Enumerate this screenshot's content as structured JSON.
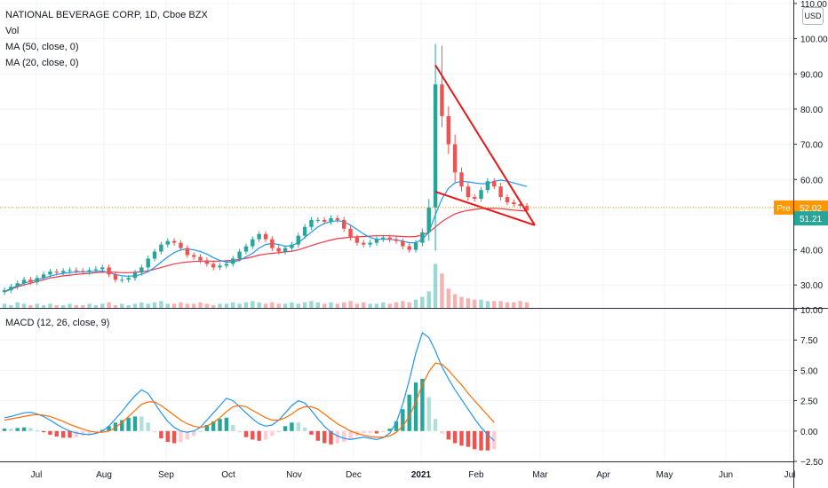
{
  "legend": {
    "title": "NATIONAL BEVERAGE CORP, 1D, Cboe BZX",
    "vol": "Vol",
    "ma50": "MA (50, close, 0)",
    "ma20": "MA (20, close, 0)",
    "macd": "MACD (12, 26, close, 9)"
  },
  "currency_button": "USD",
  "price_badges": {
    "pre_label": "Pre",
    "pre_value": "52.02",
    "last_value": "51.21"
  },
  "colors": {
    "up": "#26a69a",
    "down": "#ef5350",
    "ma50": "#f23645",
    "ma20": "#2196f3",
    "macd_line": "#2196f3",
    "signal_line": "#ff6d00",
    "trendline": "#e5191b",
    "pre_badge": "#ff9800",
    "last_badge": "#26a69a",
    "axis_text": "#131722"
  },
  "chart_data": [
    {
      "type": "candlestick",
      "title": "NATIONAL BEVERAGE CORP, 1D, Cboe BZX",
      "x_tick_labels": [
        "Jul",
        "Aug",
        "Sep",
        "Oct",
        "Nov",
        "Dec",
        "2021",
        "Feb",
        "Mar",
        "Apr",
        "May",
        "Jun",
        "Jul"
      ],
      "y_ticks": [
        "30.00",
        "40.00",
        "50.00",
        "60.00",
        "70.00",
        "80.00",
        "90.00",
        "100.00",
        "110.00"
      ],
      "ylim": [
        23.5,
        111
      ],
      "pre_market": 52.02,
      "last": 51.21,
      "series": [
        {
          "name": "Price",
          "values": [
            28.5,
            29.5,
            30.5,
            31.5,
            30.8,
            32.0,
            33.0,
            33.8,
            33.5,
            34.0,
            34.2,
            34.0,
            33.7,
            34.2,
            34.5,
            35.0,
            33.0,
            31.5,
            31.5,
            32.0,
            33.5,
            35.0,
            37.5,
            39.5,
            41.5,
            42.5,
            42.0,
            40.5,
            38.5,
            38.0,
            37.0,
            36.0,
            35.0,
            35.5,
            36.0,
            37.5,
            39.5,
            41.0,
            43.0,
            44.5,
            43.0,
            40.5,
            39.5,
            40.5,
            41.5,
            44.0,
            46.5,
            48.5,
            48.5,
            48.0,
            49.0,
            48.5,
            46.0,
            43.5,
            42.0,
            41.5,
            42.0,
            43.0,
            43.5,
            43.0,
            42.5,
            41.0,
            40.0,
            42.0,
            45.0,
            52.0,
            87.0,
            78.0,
            70.0,
            62.0,
            58.0,
            55.0,
            54.5,
            57.0,
            59.5,
            58.0,
            55.0,
            53.5,
            53.0,
            52.5,
            51.21
          ]
        },
        {
          "name": "MA (50, close, 0)",
          "values": [
            28.0,
            28.8,
            29.5,
            30.0,
            30.5,
            31.0,
            31.5,
            32.0,
            32.3,
            32.6,
            32.8,
            33.0,
            33.2,
            33.3,
            33.5,
            33.6,
            33.7,
            33.6,
            33.5,
            33.5,
            33.6,
            33.8,
            34.0,
            34.5,
            35.0,
            35.5,
            36.0,
            36.3,
            36.5,
            36.7,
            36.8,
            36.8,
            36.8,
            36.8,
            36.9,
            37.0,
            37.3,
            37.6,
            38.0,
            38.5,
            38.8,
            39.0,
            39.2,
            39.4,
            39.6,
            40.0,
            40.6,
            41.2,
            41.8,
            42.3,
            42.8,
            43.2,
            43.4,
            43.6,
            43.7,
            43.8,
            43.9,
            44.0,
            44.0,
            44.0,
            43.9,
            43.8,
            43.7,
            43.8,
            44.2,
            45.0,
            46.5,
            48.0,
            49.2,
            50.2,
            50.8,
            51.2,
            51.5,
            51.7,
            51.8,
            51.8,
            51.7,
            51.5,
            51.3,
            51.1,
            51.0
          ]
        },
        {
          "name": "MA (20, close, 0)",
          "values": [
            28.2,
            29.0,
            29.8,
            30.5,
            31.0,
            31.5,
            32.0,
            32.5,
            33.0,
            33.3,
            33.5,
            33.7,
            33.8,
            33.8,
            33.9,
            34.0,
            33.5,
            33.0,
            32.6,
            32.5,
            32.6,
            33.0,
            33.8,
            35.0,
            36.5,
            38.0,
            39.2,
            40.0,
            40.3,
            40.0,
            39.5,
            38.8,
            37.8,
            37.0,
            36.5,
            36.5,
            37.0,
            38.0,
            39.0,
            40.5,
            41.5,
            41.8,
            41.5,
            41.0,
            41.2,
            42.0,
            43.5,
            45.0,
            46.5,
            47.5,
            48.0,
            48.3,
            48.0,
            47.0,
            45.8,
            44.5,
            43.5,
            43.0,
            43.0,
            43.0,
            42.8,
            42.5,
            42.0,
            42.0,
            43.0,
            45.0,
            50.0,
            54.5,
            57.5,
            59.0,
            59.5,
            59.3,
            59.0,
            58.8,
            58.8,
            59.5,
            59.8,
            59.5,
            59.0,
            58.5,
            58.0
          ]
        }
      ],
      "volume": [
        3,
        2,
        4,
        3,
        2,
        3,
        2,
        3,
        2,
        2,
        3,
        2,
        2,
        3,
        2,
        3,
        4,
        2,
        3,
        2,
        3,
        4,
        3,
        4,
        5,
        3,
        3,
        4,
        3,
        3,
        4,
        3,
        2,
        3,
        3,
        4,
        3,
        4,
        5,
        4,
        3,
        4,
        3,
        3,
        4,
        3,
        4,
        5,
        4,
        3,
        4,
        3,
        4,
        5,
        3,
        4,
        3,
        3,
        4,
        3,
        4,
        5,
        4,
        6,
        8,
        12,
        32,
        25,
        14,
        10,
        8,
        7,
        6,
        6,
        5,
        5,
        5,
        4,
        4,
        5,
        4
      ]
    },
    {
      "type": "line",
      "title": "MACD (12, 26, close, 9)",
      "x_tick_labels": [
        "Jul",
        "Aug",
        "Sep",
        "Oct",
        "Nov",
        "Dec",
        "2021",
        "Feb",
        "Mar",
        "Apr",
        "May",
        "Jun",
        "Jul"
      ],
      "y_ticks": [
        "−2.50",
        "0.00",
        "2.50",
        "5.00",
        "7.50",
        "10.00"
      ],
      "ylim": [
        -2.5,
        10
      ],
      "series": [
        {
          "name": "MACD",
          "values": [
            1.1,
            1.2,
            1.35,
            1.5,
            1.55,
            1.4,
            1.2,
            0.9,
            0.55,
            0.25,
            0.0,
            -0.15,
            -0.25,
            -0.3,
            -0.2,
            0.0,
            0.4,
            1.0,
            1.6,
            2.3,
            2.9,
            3.4,
            3.1,
            2.3,
            1.5,
            0.8,
            0.3,
            0.0,
            -0.1,
            0.0,
            0.3,
            0.9,
            1.5,
            2.1,
            2.7,
            2.5,
            2.0,
            1.5,
            1.0,
            0.6,
            0.4,
            0.5,
            0.9,
            1.5,
            2.1,
            2.5,
            2.3,
            1.7,
            1.0,
            0.4,
            -0.1,
            -0.4,
            -0.6,
            -0.7,
            -0.6,
            -0.5,
            -0.6,
            -0.7,
            -0.55,
            -0.2,
            0.7,
            2.2,
            4.2,
            6.4,
            8.1,
            7.7,
            6.6,
            5.3,
            4.3,
            3.4,
            2.6,
            1.8,
            1.0,
            0.3,
            -0.3,
            -0.8
          ]
        },
        {
          "name": "Signal",
          "values": [
            0.9,
            1.0,
            1.1,
            1.2,
            1.3,
            1.35,
            1.3,
            1.2,
            1.0,
            0.8,
            0.55,
            0.35,
            0.15,
            0.0,
            -0.1,
            -0.1,
            0.0,
            0.3,
            0.7,
            1.2,
            1.7,
            2.2,
            2.4,
            2.4,
            2.1,
            1.7,
            1.3,
            0.9,
            0.6,
            0.4,
            0.3,
            0.4,
            0.7,
            1.1,
            1.6,
            2.0,
            2.1,
            2.0,
            1.7,
            1.4,
            1.1,
            0.9,
            0.9,
            1.1,
            1.4,
            1.8,
            2.0,
            2.0,
            1.8,
            1.4,
            1.0,
            0.6,
            0.3,
            0.0,
            -0.2,
            -0.35,
            -0.45,
            -0.5,
            -0.5,
            -0.4,
            -0.1,
            0.4,
            1.2,
            2.4,
            3.8,
            4.9,
            5.6,
            5.5,
            5.0,
            4.4,
            3.8,
            3.1,
            2.5,
            1.9,
            1.3,
            0.7
          ]
        }
      ]
    }
  ]
}
